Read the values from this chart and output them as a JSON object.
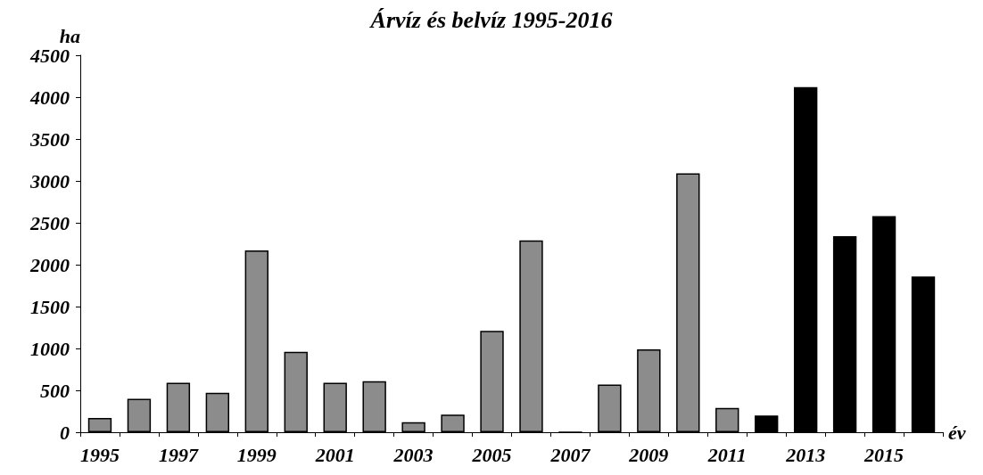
{
  "chart_data": {
    "type": "bar",
    "title": "Árvíz és belvíz 1995-2016",
    "xlabel": "év",
    "ylabel": "ha",
    "categories": [
      "1995",
      null,
      "1997",
      null,
      "1999",
      null,
      "2001",
      null,
      "2003",
      null,
      "2005",
      null,
      "2007",
      null,
      "2009",
      null,
      "2011",
      null,
      "2013",
      null,
      "2015",
      null
    ],
    "values": [
      170,
      400,
      590,
      470,
      2170,
      960,
      590,
      610,
      120,
      210,
      1210,
      2290,
      0,
      570,
      990,
      3090,
      290,
      200,
      4120,
      2340,
      2580,
      1860
    ],
    "colors": [
      "#8c8c8c",
      "#8c8c8c",
      "#8c8c8c",
      "#8c8c8c",
      "#8c8c8c",
      "#8c8c8c",
      "#8c8c8c",
      "#8c8c8c",
      "#8c8c8c",
      "#8c8c8c",
      "#8c8c8c",
      "#8c8c8c",
      "#000000",
      "#8c8c8c",
      "#8c8c8c",
      "#8c8c8c",
      "#8c8c8c",
      "#000000",
      "#000000",
      "#000000",
      "#000000",
      "#000000"
    ],
    "ylim": [
      0,
      4500
    ],
    "yticks": [
      0,
      500,
      1000,
      1500,
      2000,
      2500,
      3000,
      3500,
      4000,
      4500
    ],
    "grid": false
  }
}
